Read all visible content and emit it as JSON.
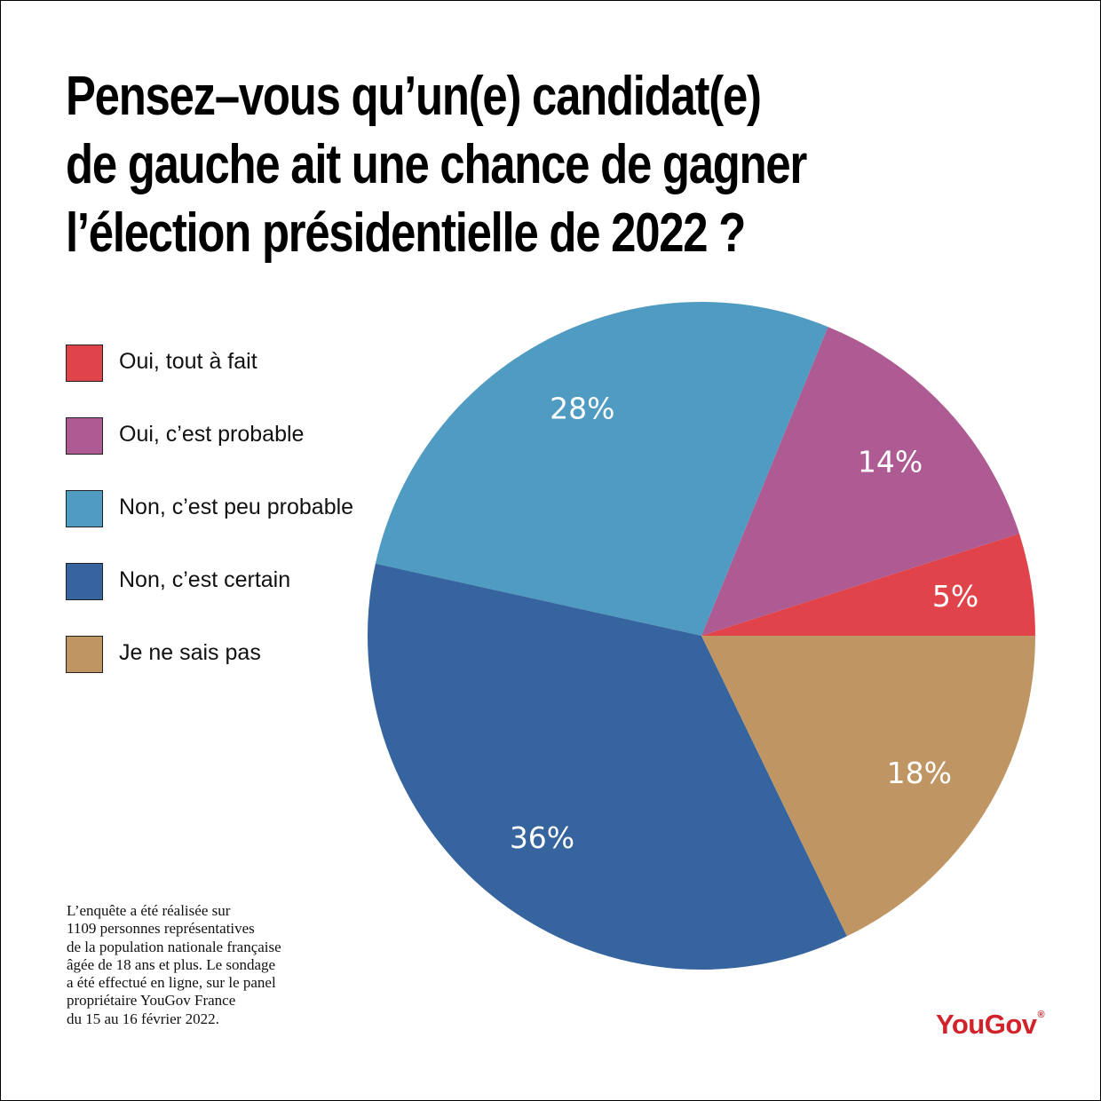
{
  "title_lines": [
    "Pensez–vous qu’un(e) candidat(e)",
    "de gauche ait une chance de gagner",
    "l’élection présidentielle de 2022 ?"
  ],
  "chart_data": {
    "type": "pie",
    "title": "Pensez–vous qu’un(e) candidat(e) de gauche ait une chance de gagner l’élection présidentielle de 2022 ?",
    "legend_position": "left",
    "slices": [
      {
        "label": "Oui, tout à fait",
        "value": 5,
        "display": "5%",
        "color": "#e0444a"
      },
      {
        "label": "Oui, c’est probable",
        "value": 14,
        "display": "14%",
        "color": "#ad5b92"
      },
      {
        "label": "Non, c’est peu probable",
        "value": 28,
        "display": "28%",
        "color": "#4f9bc2"
      },
      {
        "label": "Non, c’est certain",
        "value": 36,
        "display": "36%",
        "color": "#35649e"
      },
      {
        "label": "Je ne sais pas",
        "value": 18,
        "display": "18%",
        "color": "#bf9563"
      }
    ]
  },
  "note_lines": [
    "L’enquête a été réalisée sur",
    "1109 personnes représentatives",
    "de la population nationale française",
    "âgée de 18 ans et plus. Le sondage",
    "a été effectué en ligne, sur le panel",
    "propriétaire YouGov France",
    "du 15 au 16 février 2022."
  ],
  "logo": {
    "text": "YouGov",
    "mark": "®",
    "color": "#d2232a"
  }
}
